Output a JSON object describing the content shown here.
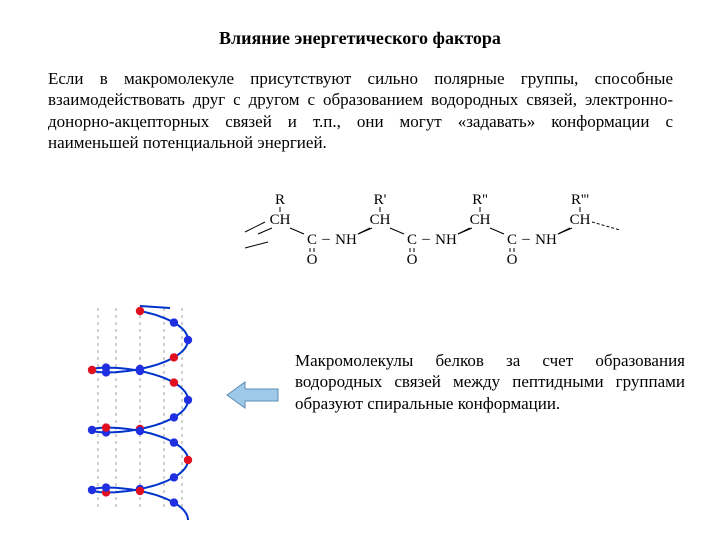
{
  "title": "Влияние энергетического фактора",
  "para1": "Если в макромолекуле присутствуют сильно полярные группы, способные взаимодействовать друг с другом с образованием водородных связей, электронно-донорно-акцепторных связей и т.п., они могут «задавать» конформации с наименьшей потенциальной энергией.",
  "para2": "Макромолекулы белков за счет образования водородных связей между пептидными группами образуют спиральные конформации.",
  "chem": {
    "font_family": "Times New Roman",
    "font_size": 15,
    "text_color": "#000000",
    "r_groups": [
      "R",
      "R'",
      "R''",
      "R'''"
    ],
    "backbone_units": [
      "CH",
      "CH",
      "CH",
      "CH"
    ],
    "link_labels": [
      "C",
      "NH",
      "C",
      "NH",
      "C",
      "NH"
    ],
    "o_double": "O",
    "dash_color": "#000000"
  },
  "helix": {
    "strand_color": "#0033cc",
    "node_blue": "#2030e0",
    "node_red": "#e01020",
    "hbond_color": "#a0a0a0",
    "line_width": 2,
    "node_radius": 4.2,
    "turns": 3,
    "nodes_per_turn": 8
  },
  "arrow": {
    "fill": "#9fc9e8",
    "stroke": "#5b8db3",
    "stroke_width": 1
  },
  "colors": {
    "background": "#ffffff",
    "text": "#000000"
  }
}
